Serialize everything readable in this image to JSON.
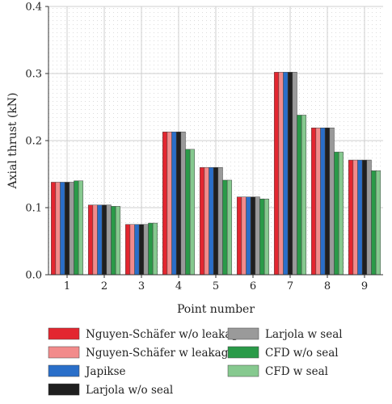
{
  "chart_data": {
    "type": "bar",
    "xlabel": "Point number",
    "ylabel": "Axial thrust (kN)",
    "ylim": [
      0,
      0.4
    ],
    "yticks": [
      "0.0",
      "0.1",
      "0.2",
      "0.3",
      "0.4"
    ],
    "categories": [
      "1",
      "2",
      "3",
      "4",
      "5",
      "6",
      "7",
      "8",
      "9"
    ],
    "grid": true,
    "legend_position": "bottom",
    "series": [
      {
        "name": "Nguyen-Schäfer w/o leakage",
        "color": "#e32630",
        "values": [
          0.138,
          0.104,
          0.075,
          0.213,
          0.16,
          0.116,
          0.302,
          0.219,
          0.171
        ]
      },
      {
        "name": "Nguyen-Schäfer w leakage",
        "color": "#f28b8b",
        "values": [
          0.138,
          0.104,
          0.075,
          0.213,
          0.16,
          0.116,
          0.302,
          0.219,
          0.171
        ]
      },
      {
        "name": "Japikse",
        "color": "#2a6fc9",
        "values": [
          0.138,
          0.104,
          0.075,
          0.213,
          0.16,
          0.116,
          0.302,
          0.219,
          0.171
        ]
      },
      {
        "name": "Larjola w/o seal",
        "color": "#1f1f1f",
        "values": [
          0.138,
          0.104,
          0.075,
          0.213,
          0.16,
          0.116,
          0.302,
          0.219,
          0.171
        ]
      },
      {
        "name": "Larjola w seal",
        "color": "#9a9a9a",
        "values": [
          0.138,
          0.104,
          0.075,
          0.213,
          0.16,
          0.116,
          0.302,
          0.219,
          0.171
        ]
      },
      {
        "name": "CFD w/o seal",
        "color": "#2a9a48",
        "values": [
          0.14,
          0.102,
          0.077,
          0.187,
          0.141,
          0.113,
          0.238,
          0.183,
          0.155
        ]
      },
      {
        "name": "CFD w seal",
        "color": "#86c98f",
        "values": [
          0.14,
          0.102,
          0.077,
          0.187,
          0.141,
          0.113,
          0.238,
          0.183,
          0.155
        ]
      }
    ]
  }
}
